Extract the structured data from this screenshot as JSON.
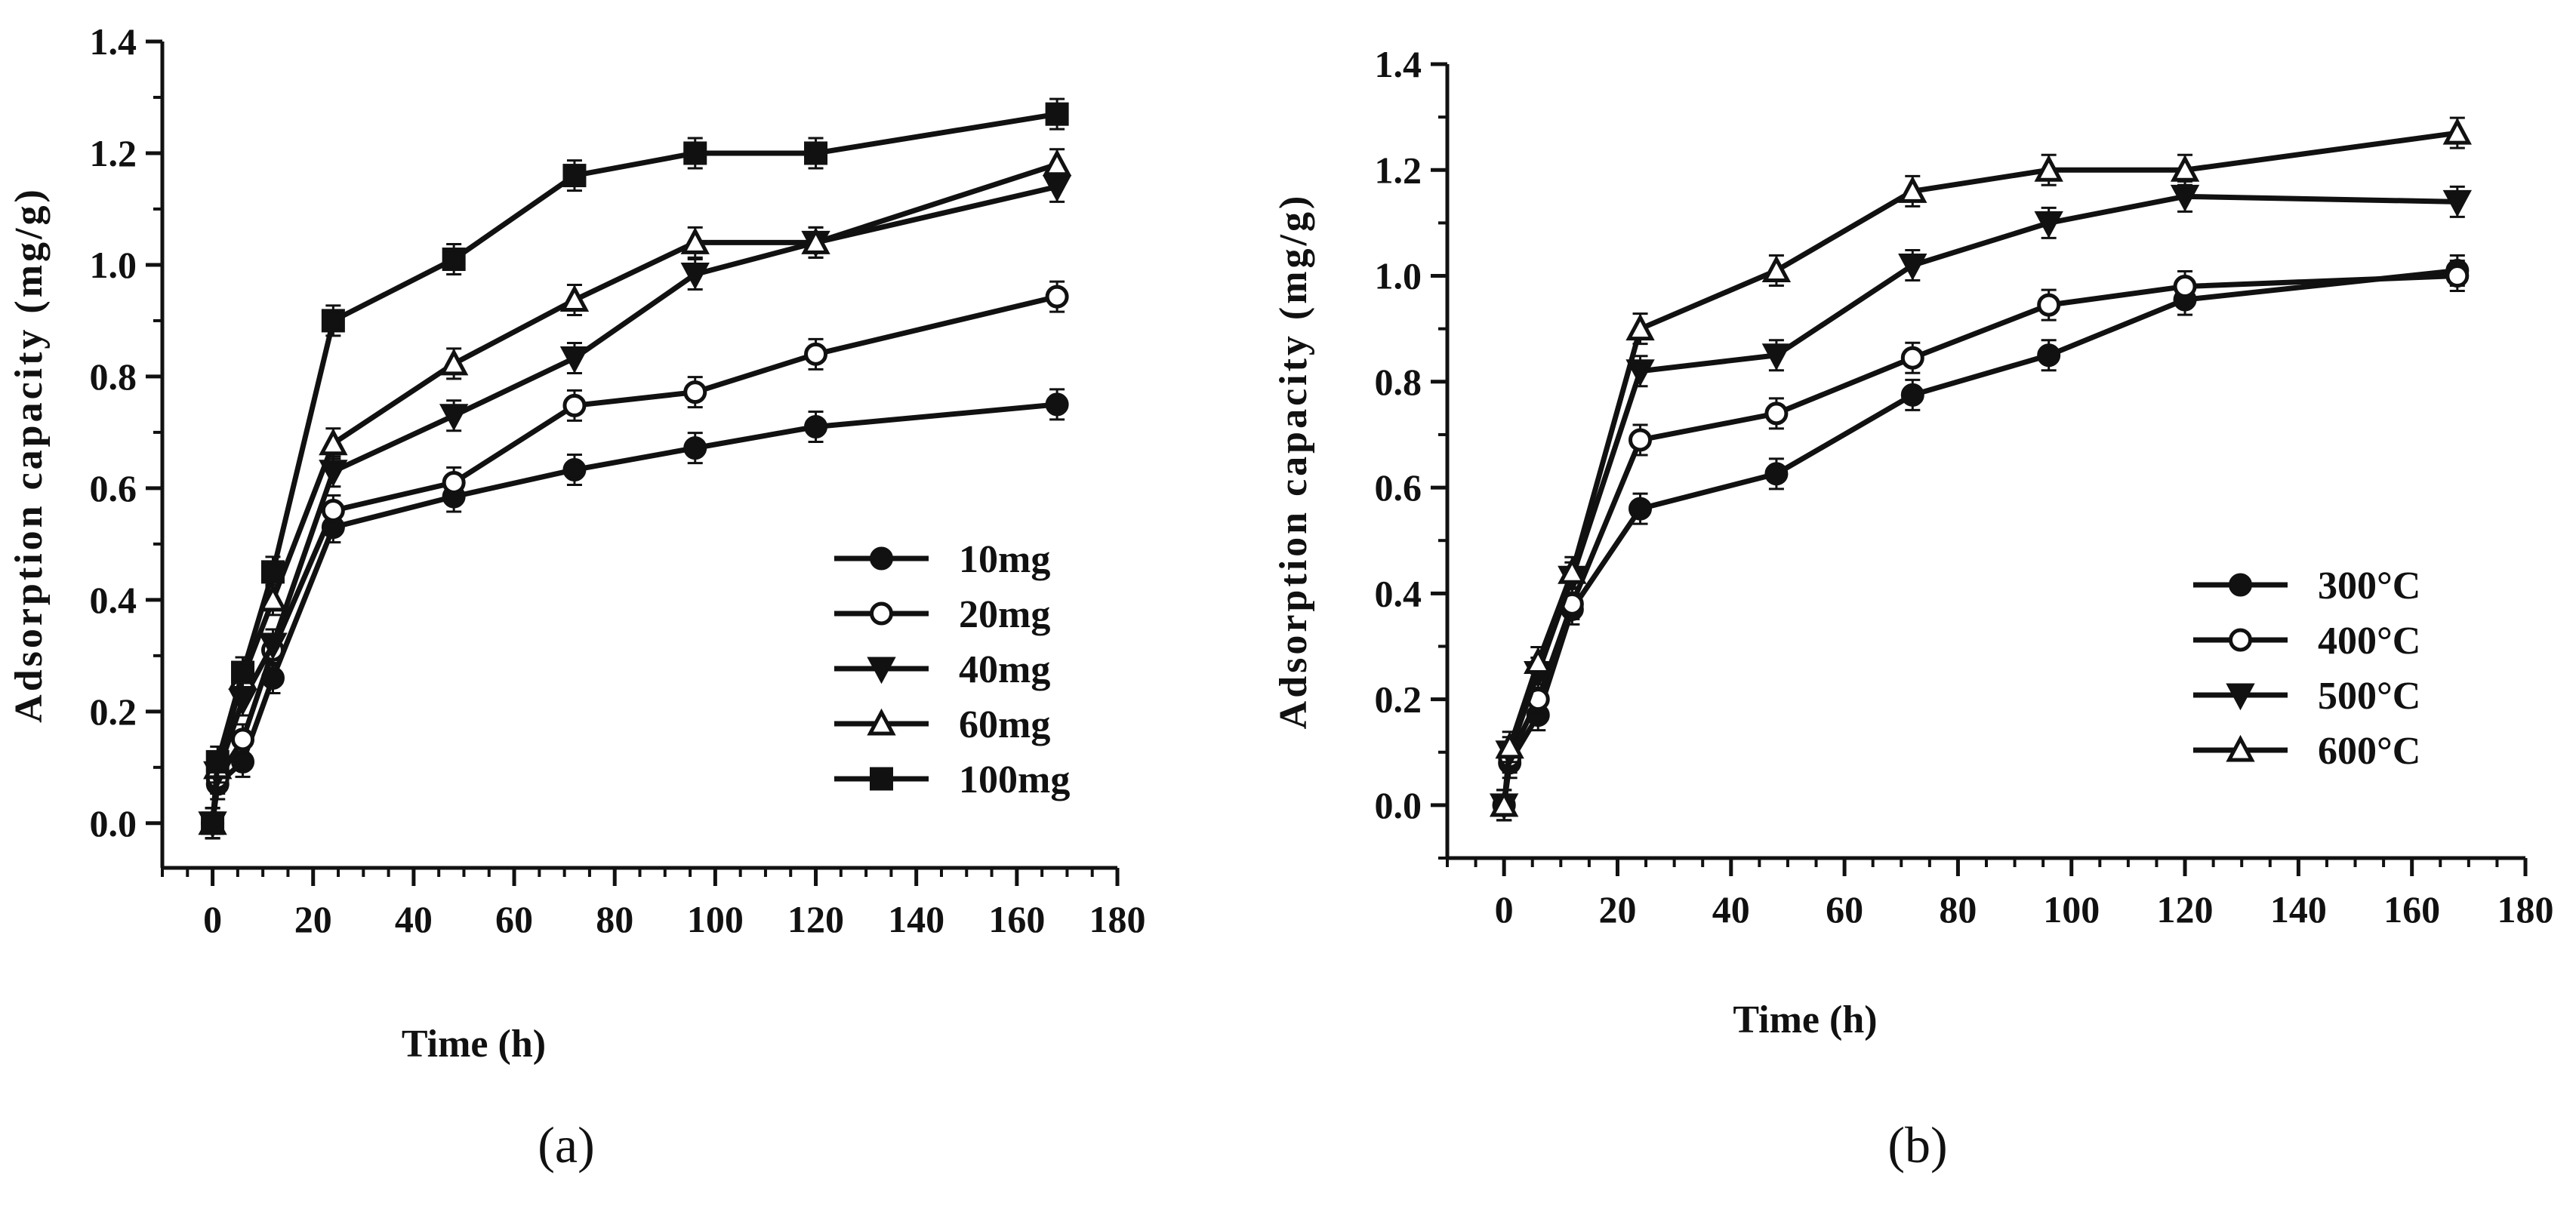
{
  "colors": {
    "ink": "#111111",
    "background": "#ffffff"
  },
  "chart_data": [
    {
      "type": "line",
      "panel_label": "(a)",
      "xlabel": "Time (h)",
      "ylabel": "Adsorption capacity (mg/g)",
      "xlim": [
        -10,
        180
      ],
      "ylim": [
        -0.08,
        1.4
      ],
      "xticks": [
        0,
        20,
        40,
        60,
        80,
        100,
        120,
        140,
        160,
        180
      ],
      "yticks": [
        0.0,
        0.2,
        0.4,
        0.6,
        0.8,
        1.0,
        1.2,
        1.4
      ],
      "tick_labels_x": [
        "0",
        "20",
        "40",
        "60",
        "80",
        "100",
        "120",
        "140",
        "160",
        "180"
      ],
      "tick_labels_y": [
        "0.0",
        "0.2",
        "0.4",
        "0.6",
        "0.8",
        "1.0",
        "1.2",
        "1.4"
      ],
      "x": [
        0,
        1,
        6,
        12,
        24,
        48,
        72,
        96,
        120,
        168
      ],
      "legend_position": "lower-right",
      "series": [
        {
          "name": "10mg",
          "marker": "filled-circle",
          "values": [
            0.0,
            0.07,
            0.11,
            0.26,
            0.53,
            0.585,
            0.633,
            0.672,
            0.71,
            0.75
          ]
        },
        {
          "name": "20mg",
          "marker": "open-circle",
          "values": [
            0.0,
            0.08,
            0.15,
            0.31,
            0.56,
            0.61,
            0.748,
            0.772,
            0.84,
            0.943
          ]
        },
        {
          "name": "40mg",
          "marker": "filled-triangle-down",
          "values": [
            0.0,
            0.09,
            0.22,
            0.32,
            0.63,
            0.73,
            0.833,
            0.983,
            1.04,
            1.14
          ]
        },
        {
          "name": "60mg",
          "marker": "open-triangle-up",
          "values": [
            0.0,
            0.1,
            0.26,
            0.4,
            0.68,
            0.823,
            0.937,
            1.04,
            1.04,
            1.18
          ]
        },
        {
          "name": "100mg",
          "marker": "filled-square",
          "values": [
            0.0,
            0.11,
            0.27,
            0.45,
            0.9,
            1.01,
            1.16,
            1.2,
            1.2,
            1.27
          ]
        }
      ]
    },
    {
      "type": "line",
      "panel_label": "(b)",
      "xlabel": "Time (h)",
      "ylabel": "Adsorption capacity (mg/g)",
      "xlim": [
        -10,
        180
      ],
      "ylim": [
        -0.1,
        1.4
      ],
      "xticks": [
        0,
        20,
        40,
        60,
        80,
        100,
        120,
        140,
        160,
        180
      ],
      "yticks": [
        0.0,
        0.2,
        0.4,
        0.6,
        0.8,
        1.0,
        1.2,
        1.4
      ],
      "tick_labels_x": [
        "0",
        "20",
        "40",
        "60",
        "80",
        "100",
        "120",
        "140",
        "160",
        "180"
      ],
      "tick_labels_y": [
        "0.0",
        "0.2",
        "0.4",
        "0.6",
        "0.8",
        "1.0",
        "1.2",
        "1.4"
      ],
      "x": [
        0,
        1,
        6,
        12,
        24,
        48,
        72,
        96,
        120,
        168
      ],
      "legend_position": "lower-right",
      "series": [
        {
          "name": "300°C",
          "marker": "filled-circle",
          "values": [
            0.0,
            0.08,
            0.17,
            0.37,
            0.56,
            0.626,
            0.775,
            0.85,
            0.955,
            1.01
          ]
        },
        {
          "name": "400°C",
          "marker": "open-circle",
          "values": [
            0.0,
            0.09,
            0.2,
            0.38,
            0.69,
            0.74,
            0.845,
            0.945,
            0.98,
            1.0
          ]
        },
        {
          "name": "500°C",
          "marker": "filled-triangle-down",
          "values": [
            0.0,
            0.1,
            0.25,
            0.43,
            0.82,
            0.85,
            1.02,
            1.1,
            1.15,
            1.14
          ]
        },
        {
          "name": "600°C",
          "marker": "open-triangle-up",
          "values": [
            0.0,
            0.11,
            0.27,
            0.44,
            0.9,
            1.01,
            1.16,
            1.2,
            1.2,
            1.27
          ]
        }
      ]
    }
  ]
}
